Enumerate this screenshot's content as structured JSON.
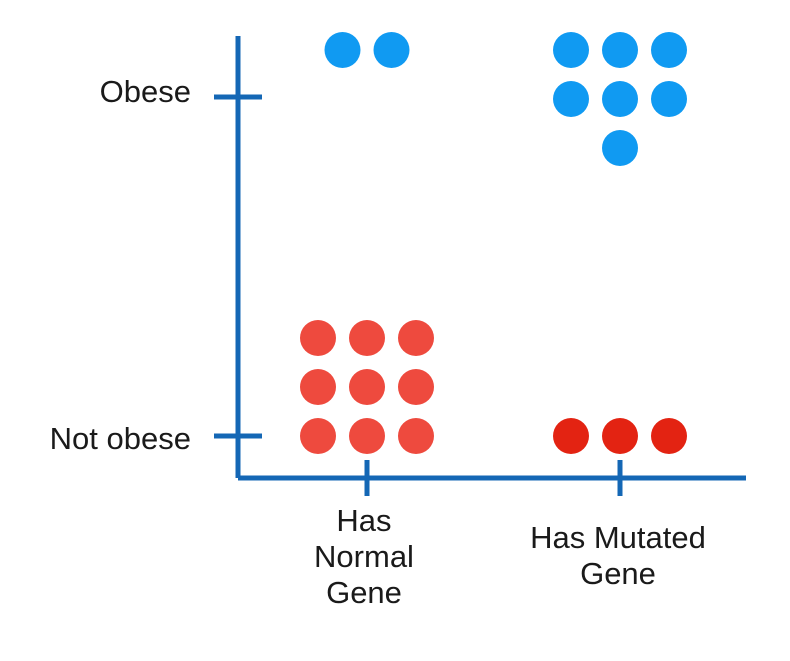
{
  "chart_data": {
    "type": "scatter",
    "categories_x": [
      "Has\nNormal\nGene",
      "Has Mutated\nGene"
    ],
    "categories_y": [
      "Not obese",
      "Obese"
    ],
    "colors": {
      "axis": "#1467b5",
      "obese": "#109af2",
      "not_obese_normal": "#ee4a3e",
      "not_obese_mutated": "#e32312"
    },
    "groups": [
      {
        "x": "Has\nNormal\nGene",
        "y": "Obese",
        "count": 2,
        "color_key": "obese"
      },
      {
        "x": "Has Mutated\nGene",
        "y": "Obese",
        "count": 7,
        "color_key": "obese"
      },
      {
        "x": "Has\nNormal\nGene",
        "y": "Not obese",
        "count": 9,
        "color_key": "not_obese_normal"
      },
      {
        "x": "Has Mutated\nGene",
        "y": "Not obese",
        "count": 3,
        "color_key": "not_obese_mutated"
      }
    ],
    "grid": false,
    "legend": "none"
  }
}
